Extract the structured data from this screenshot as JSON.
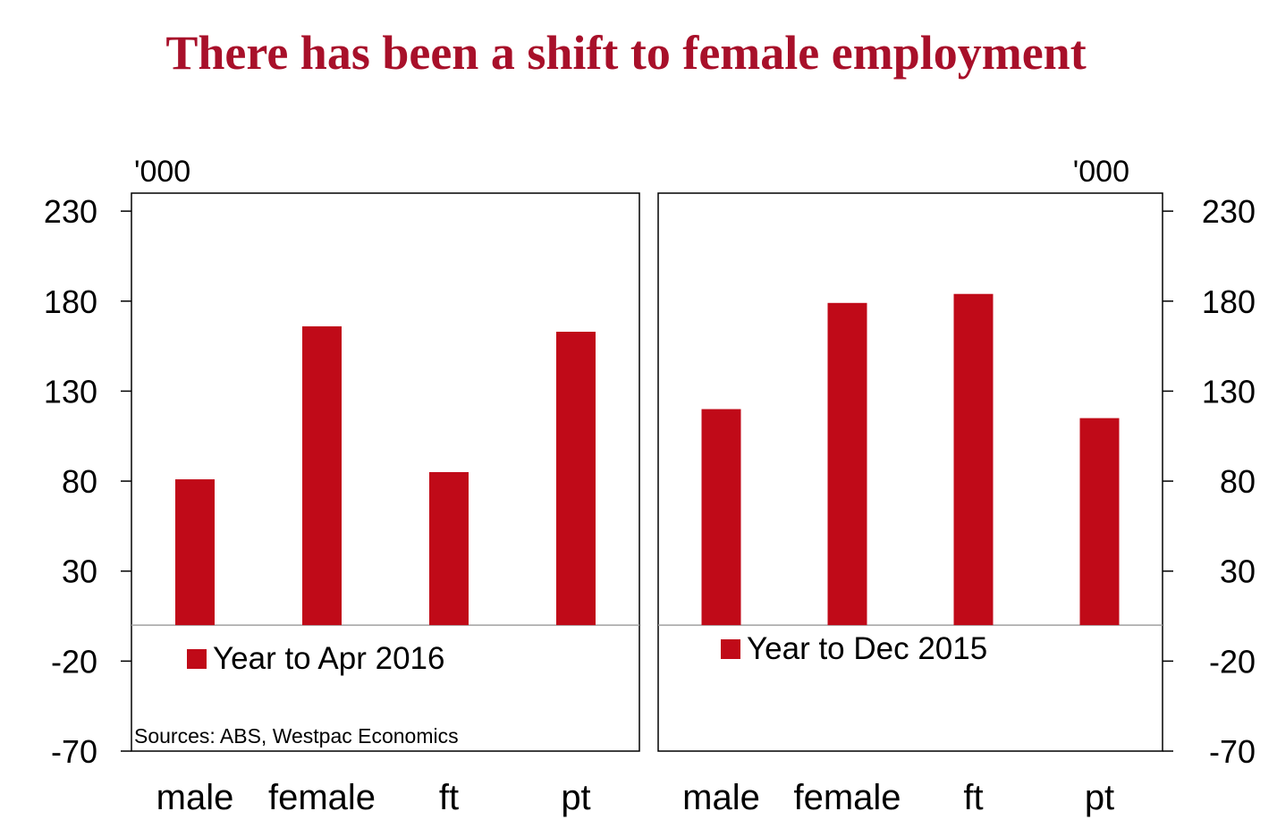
{
  "title": "There has been a shift to female employment",
  "colors": {
    "title": "#A8102A",
    "bar": "#C00A18",
    "axis": "#000000",
    "zero_line": "#A0A0A0"
  },
  "source": "Sources: ABS, Westpac Economics",
  "chart_data": [
    {
      "type": "bar",
      "unit": "'000",
      "axis_side": "left",
      "categories": [
        "male",
        "female",
        "ft",
        "pt"
      ],
      "series": [
        {
          "name": "Year to Apr 2016",
          "values": [
            81,
            166,
            85,
            163
          ]
        }
      ],
      "yticks": [
        230,
        180,
        130,
        80,
        30,
        -20,
        -70
      ],
      "ylim": [
        -70,
        240
      ],
      "legend": "lower-left",
      "grid": false
    },
    {
      "type": "bar",
      "unit": "'000",
      "axis_side": "right",
      "categories": [
        "male",
        "female",
        "ft",
        "pt"
      ],
      "series": [
        {
          "name": "Year to Dec 2015",
          "values": [
            120,
            179,
            184,
            115
          ]
        }
      ],
      "yticks": [
        230,
        180,
        130,
        80,
        30,
        -20,
        -70
      ],
      "ylim": [
        -70,
        240
      ],
      "legend": "lower-left",
      "grid": false
    }
  ]
}
